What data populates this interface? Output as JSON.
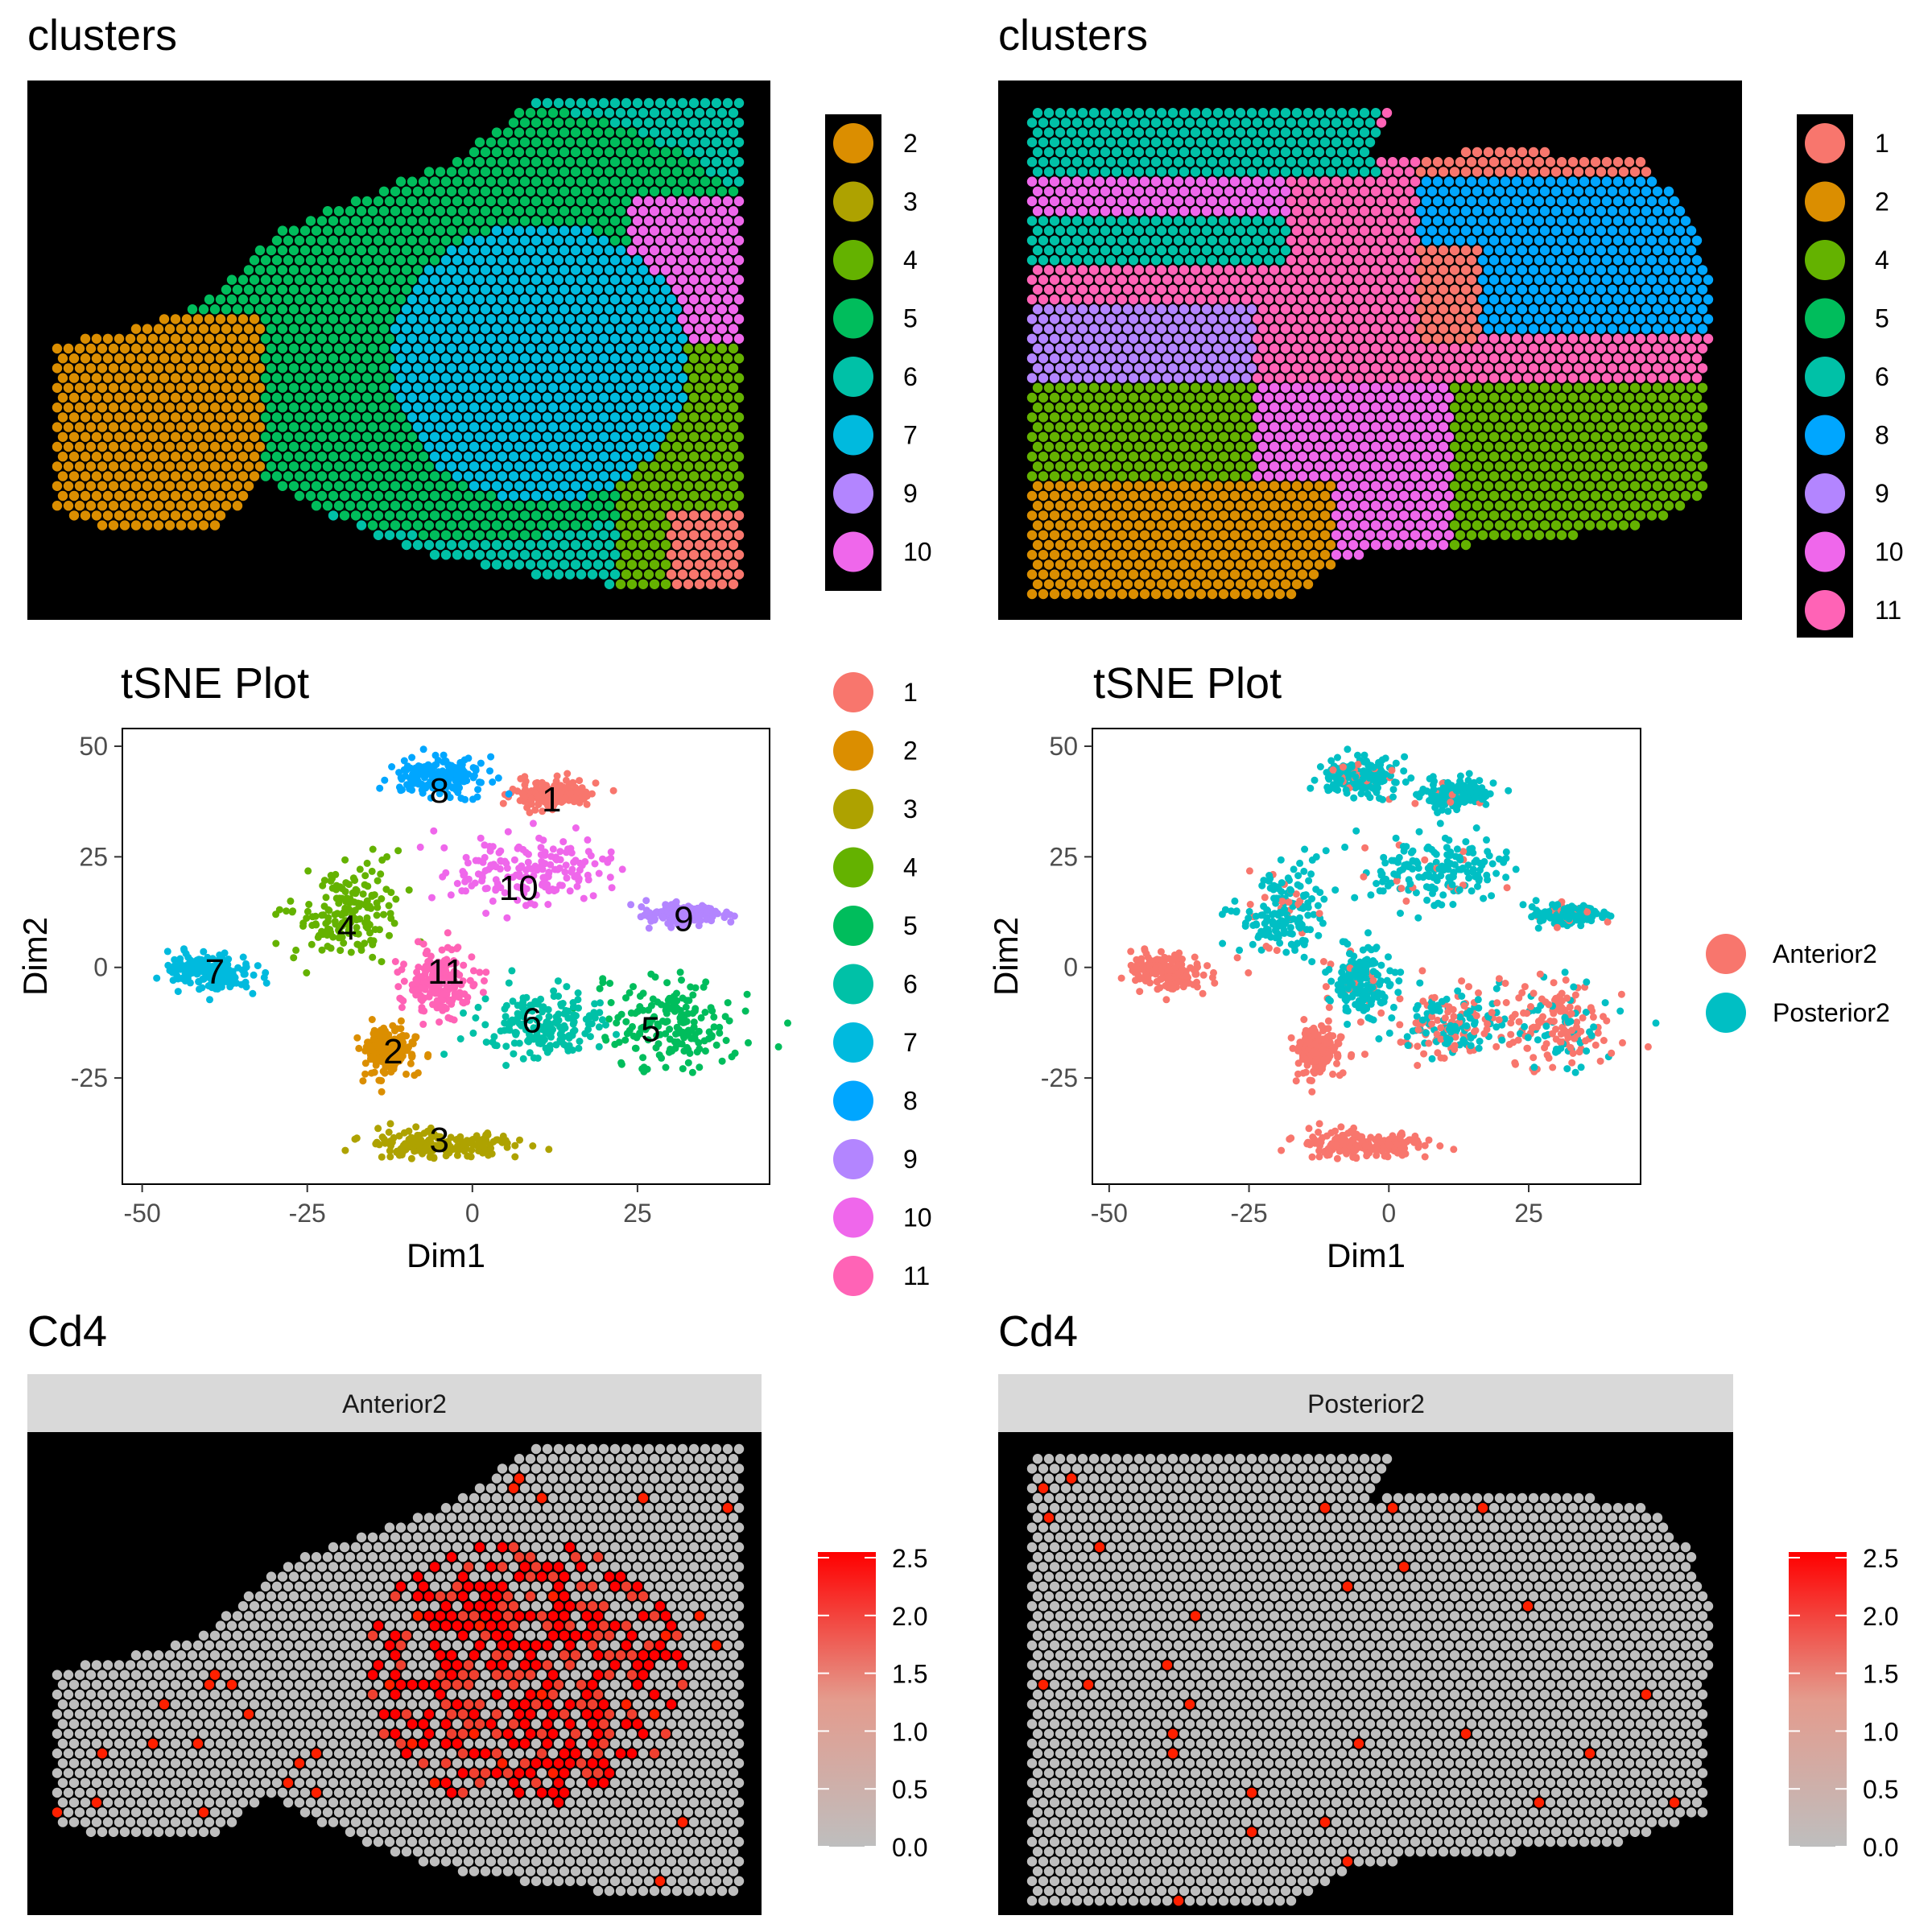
{
  "colors": {
    "c1": "#F8766D",
    "c2": "#DB8E00",
    "c3": "#AEA200",
    "c4": "#64B200",
    "c5": "#00BD5C",
    "c6": "#00C1A7",
    "c7": "#00BADE",
    "c8": "#00A6FF",
    "c9": "#B385FF",
    "c10": "#EF67EB",
    "c11": "#FF63B6",
    "anterior": "#F8766D",
    "posterior": "#00BFC4",
    "feature_low": "#BEBEBE",
    "feature_high": "#FF0000"
  },
  "chart_data": [
    {
      "type": "scatter",
      "title": "clusters",
      "description_kind": "spatial",
      "legend": [
        "2",
        "3",
        "4",
        "5",
        "6",
        "7",
        "9",
        "10"
      ],
      "legend_placement": "right",
      "background": "black"
    },
    {
      "type": "scatter",
      "title": "clusters",
      "description_kind": "spatial",
      "legend": [
        "1",
        "2",
        "4",
        "5",
        "6",
        "8",
        "9",
        "10",
        "11"
      ],
      "legend_placement": "right",
      "background": "black"
    },
    {
      "type": "scatter",
      "title": "tSNE Plot",
      "xlabel": "Dim1",
      "ylabel": "Dim2",
      "xlim": [
        -53,
        45
      ],
      "ylim": [
        -49,
        54
      ],
      "xticks": [
        -50,
        -25,
        0,
        25
      ],
      "yticks": [
        -25,
        0,
        25,
        50
      ],
      "grid": false,
      "legend_placement": "right",
      "legend": [
        "1",
        "2",
        "3",
        "4",
        "5",
        "6",
        "7",
        "8",
        "9",
        "10",
        "11"
      ],
      "clusters": [
        {
          "name": "1",
          "center": [
            12,
            39
          ],
          "spread": [
            5,
            3
          ]
        },
        {
          "name": "2",
          "center": [
            -13,
            -19
          ],
          "spread": [
            4,
            5
          ]
        },
        {
          "name": "3",
          "center": [
            -5,
            -40
          ],
          "spread": [
            12,
            3
          ]
        },
        {
          "name": "4",
          "center": [
            -19,
            12
          ],
          "spread": [
            7,
            9
          ]
        },
        {
          "name": "5",
          "center": [
            30,
            -13
          ],
          "spread": [
            9,
            9
          ]
        },
        {
          "name": "6",
          "center": [
            11,
            -13
          ],
          "spread": [
            9,
            7
          ]
        },
        {
          "name": "7",
          "center": [
            -40,
            -1
          ],
          "spread": [
            6,
            4
          ]
        },
        {
          "name": "8",
          "center": [
            -5,
            43
          ],
          "spread": [
            6,
            4
          ]
        },
        {
          "name": "9",
          "center": [
            32,
            12
          ],
          "spread": [
            5,
            2
          ]
        },
        {
          "name": "10",
          "center": [
            8,
            22
          ],
          "spread": [
            12,
            7
          ]
        },
        {
          "name": "11",
          "center": [
            -5,
            -3
          ],
          "spread": [
            5,
            7
          ]
        }
      ],
      "labels": [
        {
          "text": "1",
          "x": 12,
          "y": 38
        },
        {
          "text": "2",
          "x": -12,
          "y": -19
        },
        {
          "text": "3",
          "x": -5,
          "y": -39
        },
        {
          "text": "4",
          "x": -19,
          "y": 9
        },
        {
          "text": "5",
          "x": 27,
          "y": -14
        },
        {
          "text": "6",
          "x": 9,
          "y": -12
        },
        {
          "text": "7",
          "x": -39,
          "y": -1
        },
        {
          "text": "8",
          "x": -5,
          "y": 40
        },
        {
          "text": "9",
          "x": 32,
          "y": 11
        },
        {
          "text": "10",
          "x": 7,
          "y": 18
        },
        {
          "text": "11",
          "x": -4,
          "y": -1
        }
      ]
    },
    {
      "type": "scatter",
      "title": "tSNE Plot",
      "xlabel": "Dim1",
      "ylabel": "Dim2",
      "xlim": [
        -53,
        45
      ],
      "ylim": [
        -49,
        54
      ],
      "xticks": [
        -50,
        -25,
        0,
        25
      ],
      "yticks": [
        -25,
        0,
        25,
        50
      ],
      "grid": false,
      "legend_placement": "right",
      "series": [
        {
          "name": "Anterior2"
        },
        {
          "name": "Posterior2"
        }
      ]
    },
    {
      "type": "scatter",
      "title": "Cd4",
      "description_kind": "spatial",
      "facet": "Anterior2",
      "colorbar_ticks": [
        "0.0",
        "0.5",
        "1.0",
        "1.5",
        "2.0",
        "2.5"
      ],
      "colorbar_range": [
        0,
        2.5
      ],
      "background": "black"
    },
    {
      "type": "scatter",
      "title": "Cd4",
      "description_kind": "spatial",
      "facet": "Posterior2",
      "colorbar_ticks": [
        "0.0",
        "0.5",
        "1.0",
        "1.5",
        "2.0",
        "2.5"
      ],
      "colorbar_range": [
        0,
        2.5
      ],
      "background": "black"
    }
  ]
}
